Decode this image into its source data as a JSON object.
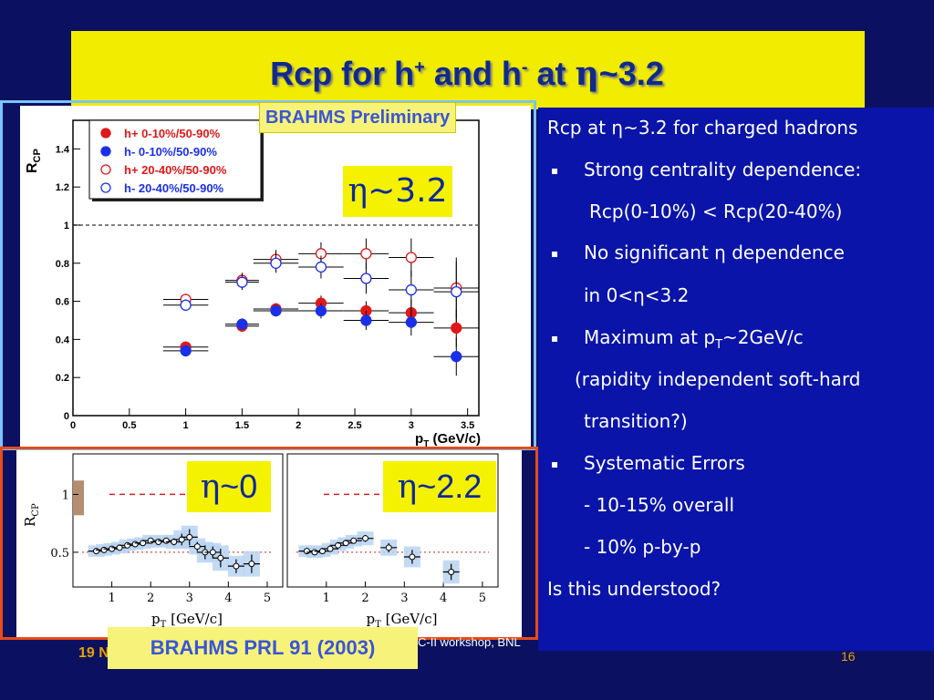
{
  "slide": {
    "title_main": "Rcp for h",
    "title_plus": "+",
    "title_mid": " and h",
    "title_minus": "-",
    "title_at": " at ",
    "title_eta": "η",
    "title_end": "~3.2"
  },
  "labels": {
    "preliminary": "BRAHMS Preliminary",
    "eta32_eta": "η",
    "eta32_val": "~3.2",
    "eta0_eta": "η",
    "eta0_val": "~0",
    "eta22_eta": "η",
    "eta22_val": "~2.2",
    "prl": "BRAHMS PRL 91 (2003)"
  },
  "footer": {
    "date": "19 N",
    "workshop": "C-II workshop, BNL",
    "page": "16"
  },
  "notes": {
    "line1": "Rcp at η~3.2 for charged hadrons",
    "bullet1": "Strong centrality dependence:",
    "bullet1b": "Rcp(0-10%) < Rcp(20-40%)",
    "bullet2": "No significant η dependence",
    "bullet2b": "in 0<η<3.2",
    "bullet3_a": "Maximum at p",
    "bullet3_sub": "T",
    "bullet3_b": "~2GeV/c",
    "bullet3c": "(rapidity independent soft-hard",
    "bullet3d": "transition?)",
    "bullet4": "Systematic Errors",
    "bullet4a": "- 10-15% overall",
    "bullet4b": "- 10% p-by-p",
    "closing": "Is this understood?",
    "bullet_symbol": "▪"
  },
  "chart_data": [
    {
      "type": "scatter",
      "title": "",
      "xlabel": "pT (GeV/c)",
      "ylabel": "RCP",
      "xlim": [
        0,
        3.6
      ],
      "ylim": [
        0,
        1.55
      ],
      "xticks": [
        "0",
        "0.5",
        "1",
        "1.5",
        "2",
        "2.5",
        "3",
        "3.5"
      ],
      "yticks": [
        "0",
        "0.2",
        "0.4",
        "0.6",
        "0.8",
        "1",
        "1.2",
        "1.4"
      ],
      "reference_line": 1,
      "legend_position": "top-left",
      "x": [
        1.0,
        1.5,
        1.8,
        2.2,
        2.6,
        3.0,
        3.4
      ],
      "xerr": [
        0.2,
        0.15,
        0.2,
        0.2,
        0.2,
        0.2,
        0.2
      ],
      "series": [
        {
          "name": "h+ 0-10%/50-90%",
          "marker": "filled",
          "color": "#e01818",
          "values": [
            0.36,
            0.47,
            0.56,
            0.59,
            0.55,
            0.54,
            0.46
          ],
          "yerr": [
            0.02,
            0.03,
            0.03,
            0.04,
            0.05,
            0.07,
            0.1
          ]
        },
        {
          "name": "h- 0-10%/50-90%",
          "marker": "filled",
          "color": "#1a30e8",
          "values": [
            0.34,
            0.48,
            0.55,
            0.55,
            0.5,
            0.49,
            0.31
          ],
          "yerr": [
            0.02,
            0.03,
            0.03,
            0.04,
            0.05,
            0.07,
            0.1
          ]
        },
        {
          "name": "h+ 20-40%/50-90%",
          "marker": "open",
          "color": "#e01818",
          "values": [
            0.61,
            0.71,
            0.82,
            0.85,
            0.85,
            0.83,
            0.67
          ],
          "yerr": [
            0.03,
            0.04,
            0.05,
            0.06,
            0.08,
            0.1,
            0.16
          ]
        },
        {
          "name": "h- 20-40%/50-90%",
          "marker": "open",
          "color": "#1a30e8",
          "values": [
            0.58,
            0.7,
            0.8,
            0.78,
            0.72,
            0.66,
            0.65
          ],
          "yerr": [
            0.03,
            0.04,
            0.05,
            0.06,
            0.08,
            0.1,
            0.16
          ]
        }
      ]
    },
    {
      "type": "scatter",
      "title": "",
      "xlabel": "pT [GeV/c]",
      "ylabel": "RCP",
      "xlim": [
        0,
        5.4
      ],
      "ylim": [
        0.2,
        1.35
      ],
      "xticks": [
        "1",
        "2",
        "3",
        "4",
        "5"
      ],
      "yticks": [
        "0.5",
        "1"
      ],
      "reference_line": 1,
      "x": [
        0.6,
        0.8,
        1.0,
        1.2,
        1.4,
        1.6,
        1.8,
        2.0,
        2.2,
        2.4,
        2.6,
        2.8,
        3.0,
        3.2,
        3.4,
        3.6,
        3.8,
        4.2,
        4.6
      ],
      "values": [
        0.51,
        0.52,
        0.53,
        0.54,
        0.56,
        0.57,
        0.58,
        0.6,
        0.59,
        0.6,
        0.59,
        0.61,
        0.63,
        0.55,
        0.5,
        0.5,
        0.45,
        0.38,
        0.4
      ],
      "yerr": [
        0.02,
        0.02,
        0.02,
        0.02,
        0.02,
        0.02,
        0.02,
        0.02,
        0.02,
        0.02,
        0.03,
        0.05,
        0.07,
        0.04,
        0.06,
        0.05,
        0.08,
        0.06,
        0.08
      ]
    },
    {
      "type": "scatter",
      "title": "",
      "xlabel": "pT [GeV/c]",
      "ylabel": "",
      "xlim": [
        0,
        5.4
      ],
      "ylim": [
        0.2,
        1.35
      ],
      "xticks": [
        "1",
        "2",
        "3",
        "4",
        "5"
      ],
      "yticks": [],
      "reference_line": 1,
      "x": [
        0.5,
        0.7,
        0.9,
        1.1,
        1.3,
        1.5,
        1.7,
        2.0,
        2.6,
        3.2,
        4.2
      ],
      "values": [
        0.51,
        0.5,
        0.51,
        0.53,
        0.56,
        0.58,
        0.6,
        0.62,
        0.54,
        0.46,
        0.33
      ],
      "yerr": [
        0.02,
        0.02,
        0.02,
        0.02,
        0.02,
        0.02,
        0.02,
        0.03,
        0.04,
        0.06,
        0.07
      ]
    }
  ]
}
